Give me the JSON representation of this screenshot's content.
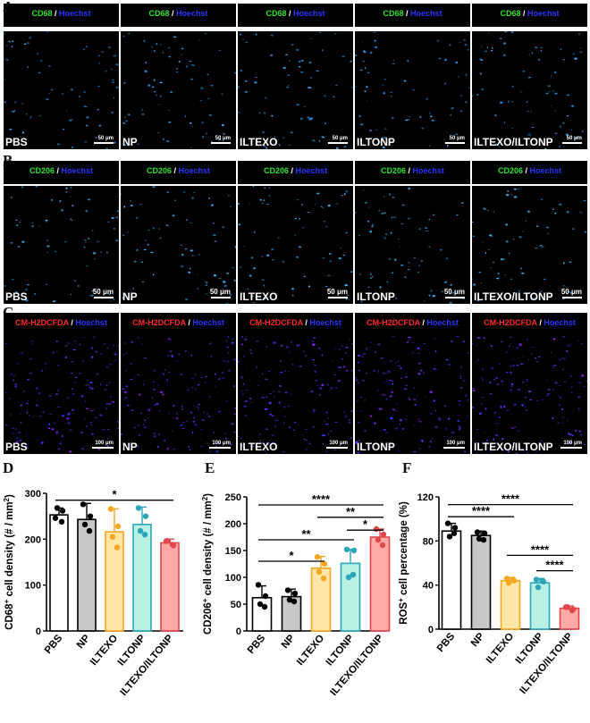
{
  "panels": {
    "A": {
      "label": "A",
      "stain_green": "CD68",
      "sep": " / ",
      "stain_blue": "Hoechst",
      "green_color": "#2ee02e",
      "blue_color": "#2a35ff",
      "conditions": [
        "PBS",
        "NP",
        "ILTEXO",
        "ILTONP",
        "ILTEXO/ILTONP"
      ],
      "scale_text": "50 μm",
      "dot_color": "#35a8ff"
    },
    "B": {
      "label": "B",
      "stain_green": "CD206",
      "sep": " / ",
      "stain_blue": "Hoechst",
      "green_color": "#2ee02e",
      "blue_color": "#2a35ff",
      "conditions": [
        "PBS",
        "NP",
        "ILTEXO",
        "ILTONP",
        "ILTEXO/ILTONP"
      ],
      "scale_text": "50 μm",
      "dot_color": "#3fb6ff"
    },
    "C": {
      "label": "C",
      "stain_red": "CM-H2DCFDA",
      "sep": " / ",
      "stain_blue": "Hoechst",
      "red_color": "#ff2a2a",
      "blue_color": "#2a35ff",
      "conditions": [
        "PBS",
        "NP",
        "ILTEXO",
        "ILTONP",
        "ILTEXO/ILTONP"
      ],
      "scale_text": "100 μm",
      "dot_color": "#7b2cff"
    }
  },
  "chart_data": [
    {
      "panel": "D",
      "type": "bar",
      "ylabel_main": "CD68",
      "ylabel_sup": "+",
      "ylabel_rest": " cell density (# / mm",
      "ylabel_sq": "2",
      "ylabel_end": ")",
      "ylim": [
        0,
        300
      ],
      "yticks": [
        0,
        100,
        200,
        300
      ],
      "categories": [
        "PBS",
        "NP",
        "ILTEXO",
        "ILTONP",
        "ILTEXO/ILTONP"
      ],
      "values": [
        253,
        243,
        216,
        232,
        192
      ],
      "errors": [
        15,
        35,
        50,
        38,
        8
      ],
      "points": [
        [
          246,
          262,
          268,
          238
        ],
        [
          276,
          250,
          232,
          218
        ],
        [
          266,
          228,
          205,
          182
        ],
        [
          268,
          250,
          218,
          210
        ],
        [
          196,
          186,
          196,
          188
        ]
      ],
      "fill": [
        "#ffffff",
        "#c8c8c8",
        "#ffe7a8",
        "#b8f0e4",
        "#ffaaa6"
      ],
      "edge": [
        "#000000",
        "#000000",
        "#f5a623",
        "#2aa6b8",
        "#e0474c"
      ],
      "sig": [
        {
          "from": 0,
          "to": 4,
          "text": "*",
          "y": 285
        }
      ]
    },
    {
      "panel": "E",
      "type": "bar",
      "ylabel_main": "CD206",
      "ylabel_sup": "+",
      "ylabel_rest": " cell density (# / mm",
      "ylabel_sq": "2",
      "ylabel_end": ")",
      "ylim": [
        0,
        250
      ],
      "yticks": [
        0,
        50,
        100,
        150,
        200,
        250
      ],
      "categories": [
        "PBS",
        "NP",
        "ILTEXO",
        "ILTONP",
        "ILTEXO/ILTONP"
      ],
      "values": [
        62,
        64,
        117,
        126,
        175
      ],
      "errors": [
        22,
        14,
        22,
        26,
        15
      ],
      "points": [
        [
          86,
          65,
          50,
          45
        ],
        [
          76,
          70,
          58,
          55
        ],
        [
          138,
          125,
          110,
          98
        ],
        [
          152,
          150,
          100,
          105
        ],
        [
          190,
          180,
          170,
          160
        ]
      ],
      "fill": [
        "#ffffff",
        "#c8c8c8",
        "#ffe7a8",
        "#b8f0e4",
        "#ffaaa6"
      ],
      "edge": [
        "#000000",
        "#000000",
        "#f5a623",
        "#2aa6b8",
        "#e0474c"
      ],
      "sig": [
        {
          "from": 0,
          "to": 4,
          "text": "****",
          "y": 235
        },
        {
          "from": 2,
          "to": 4,
          "text": "**",
          "y": 212
        },
        {
          "from": 0,
          "to": 3,
          "text": "**",
          "y": 170
        },
        {
          "from": 3,
          "to": 4,
          "text": "*",
          "y": 188
        },
        {
          "from": 0,
          "to": 2,
          "text": "*",
          "y": 130
        }
      ]
    },
    {
      "panel": "F",
      "type": "bar",
      "ylabel_main": "ROS",
      "ylabel_sup": "+",
      "ylabel_rest": " cell percentage (%)",
      "ylabel_sq": "",
      "ylabel_end": "",
      "ylim": [
        0,
        120
      ],
      "yticks": [
        0,
        40,
        80,
        120
      ],
      "categories": [
        "PBS",
        "NP",
        "ILTEXO",
        "ILTONP",
        "ILTEXO/ILTONP"
      ],
      "values": [
        89,
        85,
        44,
        42,
        19
      ],
      "errors": [
        7,
        4,
        3,
        4,
        2
      ],
      "points": [
        [
          96,
          92,
          84,
          87
        ],
        [
          88,
          87,
          82,
          81
        ],
        [
          46,
          44,
          42,
          45
        ],
        [
          45,
          43,
          38,
          44
        ],
        [
          20,
          18,
          20,
          17
        ]
      ],
      "fill": [
        "#ffffff",
        "#c8c8c8",
        "#ffe7a8",
        "#b8f0e4",
        "#ffaaa6"
      ],
      "edge": [
        "#000000",
        "#000000",
        "#f5a623",
        "#2aa6b8",
        "#e0474c"
      ],
      "sig": [
        {
          "from": 0,
          "to": 4,
          "text": "****",
          "y": 113
        },
        {
          "from": 0,
          "to": 2,
          "text": "****",
          "y": 102
        },
        {
          "from": 2,
          "to": 4,
          "text": "****",
          "y": 67
        },
        {
          "from": 3,
          "to": 4,
          "text": "****",
          "y": 53
        }
      ]
    }
  ]
}
